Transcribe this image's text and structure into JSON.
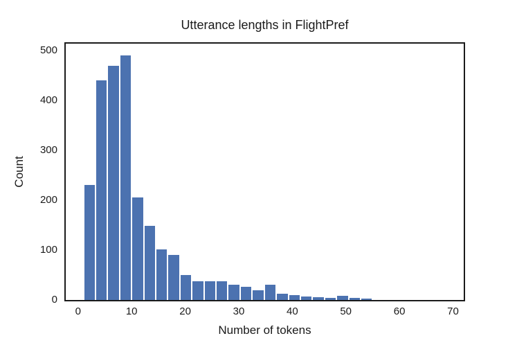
{
  "chart_data": {
    "type": "bar",
    "subtype": "histogram",
    "title": "Utterance lengths in FlightPref",
    "xlabel": "Number of tokens",
    "ylabel": "Count",
    "bin_edges": [
      1,
      3.25,
      5.5,
      7.75,
      10,
      12.25,
      14.5,
      16.75,
      19,
      21.25,
      23.5,
      25.75,
      28,
      30.25,
      32.5,
      34.75,
      37,
      39.25,
      41.5,
      43.75,
      46,
      48.25,
      50.5,
      52.75,
      55
    ],
    "counts": [
      230,
      440,
      470,
      490,
      205,
      148,
      102,
      90,
      50,
      38,
      38,
      38,
      31,
      26,
      20,
      31,
      13,
      10,
      7,
      6,
      4,
      8,
      4,
      3
    ],
    "xticks": [
      0,
      10,
      20,
      30,
      40,
      50,
      60,
      70
    ],
    "yticks": [
      0,
      100,
      200,
      300,
      400,
      500
    ],
    "xlim": [
      -2.3,
      72
    ],
    "ylim": [
      0,
      514
    ],
    "grid": false,
    "legend": false,
    "bar_color": "#4C72B0",
    "bar_edge_color": "#FFFFFF",
    "spine_color": "#1a1a1a",
    "text_color": "#1a1a1a"
  }
}
